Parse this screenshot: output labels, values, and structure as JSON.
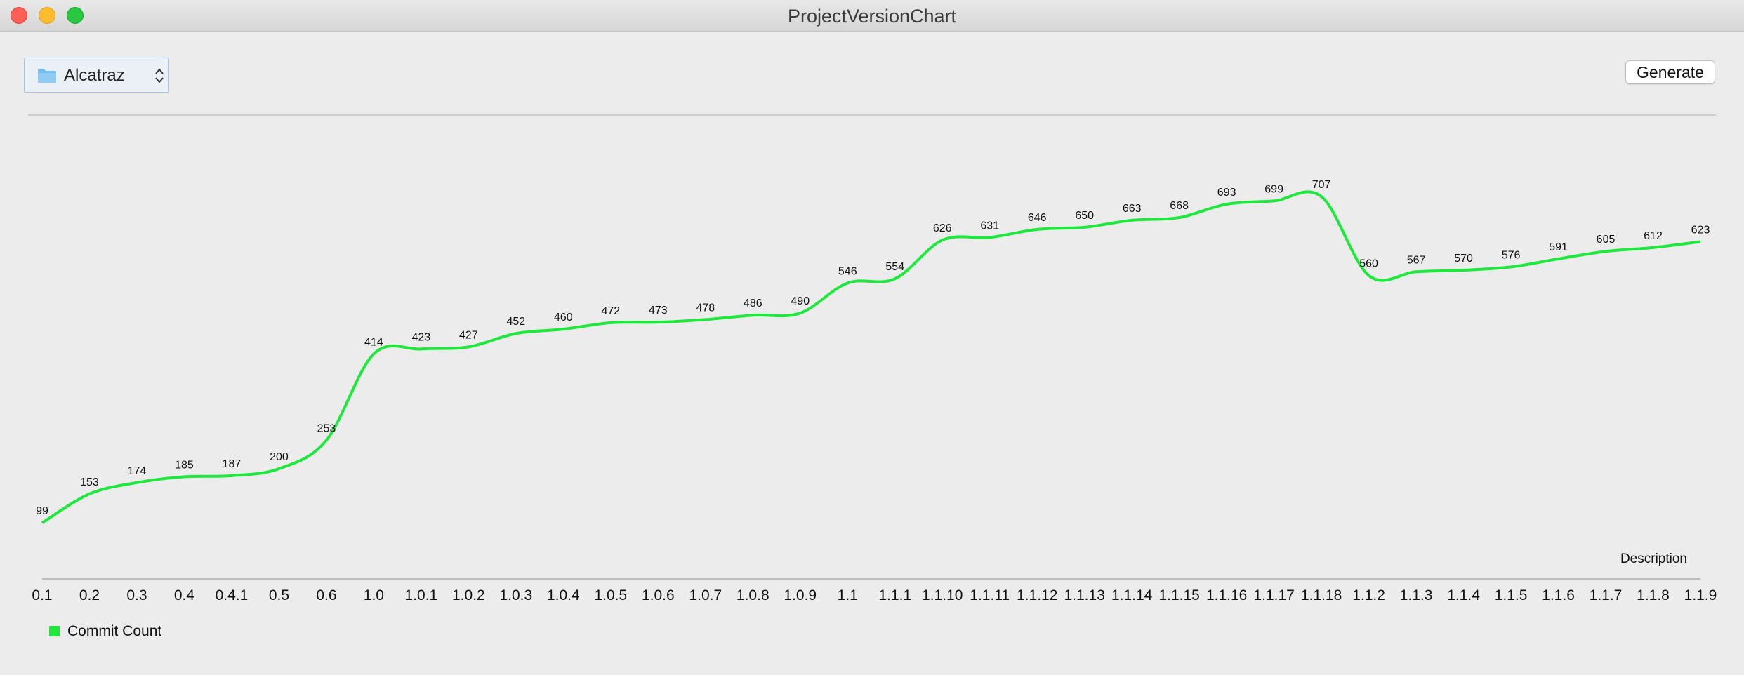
{
  "window": {
    "title": "ProjectVersionChart"
  },
  "toolbar": {
    "project": "Alcatraz",
    "generate_label": "Generate",
    "folder_icon": "folder-icon",
    "selector_icon": "updown-chevron-icon"
  },
  "chart_data": {
    "type": "line",
    "xlabel": "Description",
    "ylabel": "",
    "categories": [
      "0.1",
      "0.2",
      "0.3",
      "0.4",
      "0.4.1",
      "0.5",
      "0.6",
      "1.0",
      "1.0.1",
      "1.0.2",
      "1.0.3",
      "1.0.4",
      "1.0.5",
      "1.0.6",
      "1.0.7",
      "1.0.8",
      "1.0.9",
      "1.1",
      "1.1.1",
      "1.1.10",
      "1.1.11",
      "1.1.12",
      "1.1.13",
      "1.1.14",
      "1.1.15",
      "1.1.16",
      "1.1.17",
      "1.1.18",
      "1.1.2",
      "1.1.3",
      "1.1.4",
      "1.1.5",
      "1.1.6",
      "1.1.7",
      "1.1.8",
      "1.1.9"
    ],
    "series": [
      {
        "name": "Commit Count",
        "color": "#1ee83c",
        "values": [
          99,
          153,
          174,
          185,
          187,
          200,
          253,
          414,
          423,
          427,
          452,
          460,
          472,
          473,
          478,
          486,
          490,
          546,
          554,
          626,
          631,
          646,
          650,
          663,
          668,
          693,
          699,
          707,
          560,
          567,
          570,
          576,
          591,
          605,
          612,
          623
        ]
      }
    ],
    "ylim": [
      60,
      740
    ],
    "grid": false,
    "legend": "bottom-left"
  }
}
